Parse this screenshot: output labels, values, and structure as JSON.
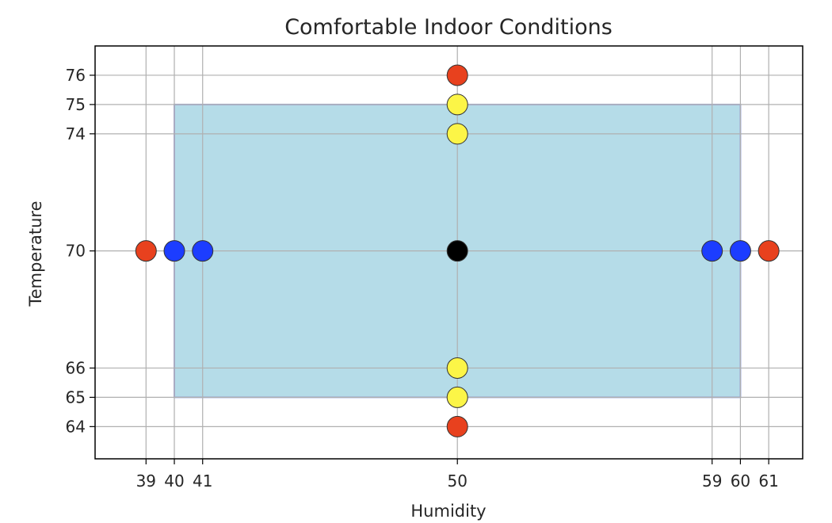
{
  "chart_data": {
    "type": "scatter",
    "title": "Comfortable Indoor Conditions",
    "xlabel": "Humidity",
    "ylabel": "Temperature",
    "xlim": [
      37.2,
      62.2
    ],
    "ylim": [
      62.9,
      77
    ],
    "xticks": [
      39,
      40,
      41,
      50,
      59,
      60,
      61
    ],
    "yticks": [
      64,
      65,
      66,
      70,
      74,
      75,
      76
    ],
    "grid": true,
    "comfort_zone": {
      "x": [
        40,
        60
      ],
      "y": [
        65,
        75
      ],
      "fill": "#add8e6",
      "edge": "#9aa6e0"
    },
    "points": [
      {
        "x": 50,
        "y": 76,
        "color": "#e8411e"
      },
      {
        "x": 50,
        "y": 75,
        "color": "#fcf547"
      },
      {
        "x": 50,
        "y": 74,
        "color": "#fcf547"
      },
      {
        "x": 39,
        "y": 70,
        "color": "#e8411e"
      },
      {
        "x": 40,
        "y": 70,
        "color": "#1c3dff"
      },
      {
        "x": 41,
        "y": 70,
        "color": "#1c3dff"
      },
      {
        "x": 50,
        "y": 70,
        "color": "#000000"
      },
      {
        "x": 59,
        "y": 70,
        "color": "#1c3dff"
      },
      {
        "x": 60,
        "y": 70,
        "color": "#1c3dff"
      },
      {
        "x": 61,
        "y": 70,
        "color": "#e8411e"
      },
      {
        "x": 50,
        "y": 66,
        "color": "#fcf547"
      },
      {
        "x": 50,
        "y": 65,
        "color": "#fcf547"
      },
      {
        "x": 50,
        "y": 64,
        "color": "#e8411e"
      }
    ]
  }
}
